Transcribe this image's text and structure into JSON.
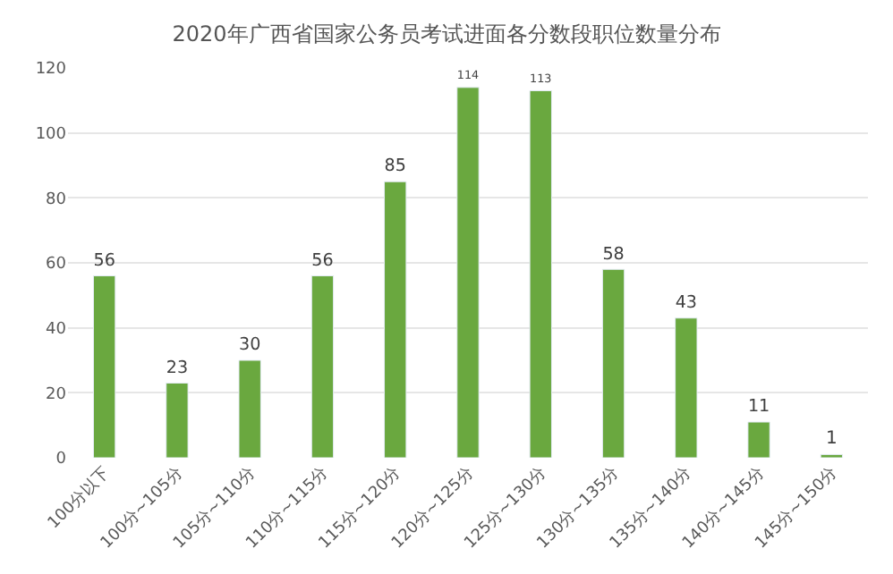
{
  "chart_data": {
    "type": "bar",
    "title": "2020年广西省国家公务员考试进面各分数段职位数量分布",
    "categories": [
      "100分以下",
      "100分~105分",
      "105分~110分",
      "110分~115分",
      "115分~120分",
      "120分~125分",
      "125分~130分",
      "130分~135分",
      "135分~140分",
      "140分~145分",
      "145分~150分"
    ],
    "values": [
      56,
      23,
      30,
      56,
      85,
      114,
      113,
      58,
      43,
      11,
      1
    ],
    "color": "#6aa83f",
    "ylim": [
      0,
      120
    ],
    "yticks": [
      0,
      20,
      40,
      60,
      80,
      100,
      120
    ],
    "grid": "y",
    "data_labels": true
  }
}
